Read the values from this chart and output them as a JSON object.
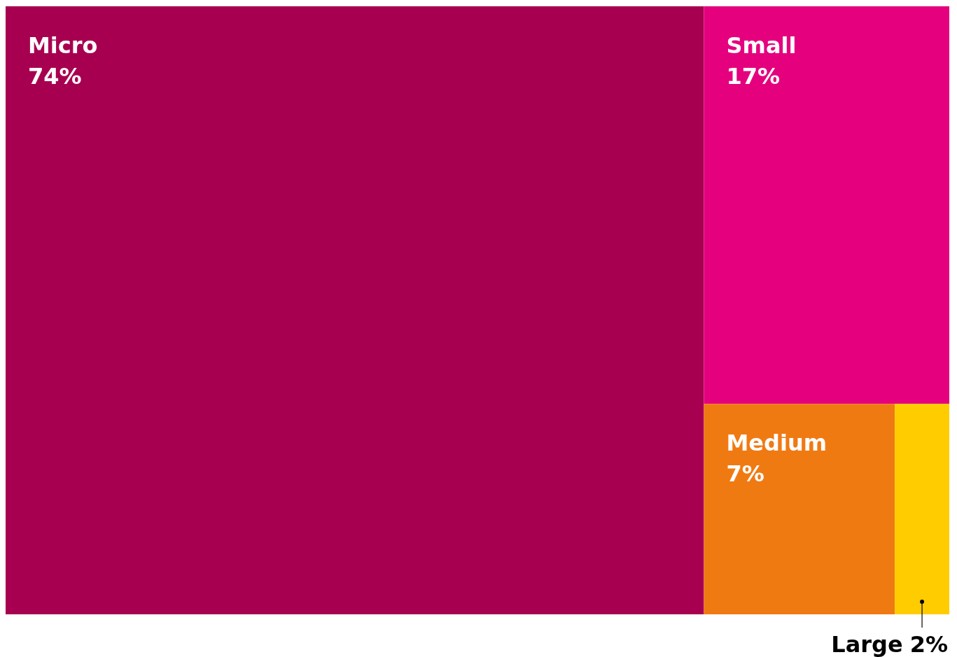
{
  "chart_data": {
    "type": "other",
    "categories": [
      "Micro",
      "Small",
      "Medium",
      "Large"
    ],
    "values": [
      74,
      17,
      7,
      2
    ],
    "value_labels": [
      "74%",
      "17%",
      "7%",
      "2%"
    ],
    "colors": [
      "#a80050",
      "#e5007e",
      "#f07a12",
      "#ffcc00"
    ]
  }
}
